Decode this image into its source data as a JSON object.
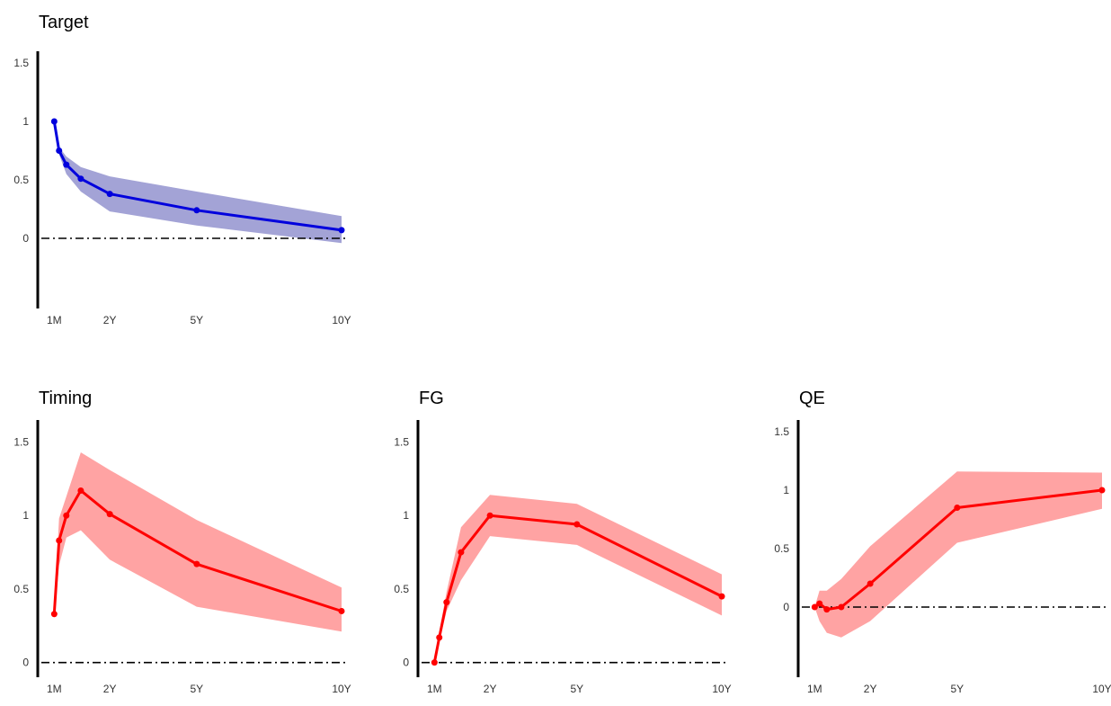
{
  "chart_data": [
    {
      "type": "line",
      "title": "Target",
      "x_tick_labels": [
        "1M",
        "2Y",
        "5Y",
        "10Y"
      ],
      "x_tick_values": [
        0.083,
        2,
        5,
        10
      ],
      "y_tick_labels": [
        "0",
        "0.5",
        "1",
        "1.5"
      ],
      "y_tick_values": [
        0,
        0.5,
        1,
        1.5
      ],
      "ylim": [
        -0.6,
        1.6
      ],
      "xlim": [
        -0.3,
        10
      ],
      "reference_line": {
        "y": 0,
        "style": "dash-dot"
      },
      "color": "#0000dd",
      "band_color": "#a3a3d6",
      "series": [
        {
          "x": [
            0.083,
            0.25,
            0.5,
            1,
            2,
            5,
            10
          ],
          "values": [
            1.0,
            0.75,
            0.63,
            0.51,
            0.38,
            0.24,
            0.07
          ],
          "lower": [
            1.0,
            0.72,
            0.55,
            0.4,
            0.23,
            0.11,
            -0.04
          ],
          "upper": [
            1.0,
            0.78,
            0.7,
            0.61,
            0.53,
            0.4,
            0.19
          ]
        }
      ]
    },
    {
      "type": "line",
      "title": "Timing",
      "x_tick_labels": [
        "1M",
        "2Y",
        "5Y",
        "10Y"
      ],
      "x_tick_values": [
        0.083,
        2,
        5,
        10
      ],
      "y_tick_labels": [
        "0",
        "0.5",
        "1",
        "1.5"
      ],
      "y_tick_values": [
        0,
        0.5,
        1,
        1.5
      ],
      "ylim": [
        -0.1,
        1.65
      ],
      "xlim": [
        -0.3,
        10
      ],
      "reference_line": {
        "y": 0,
        "style": "dash-dot"
      },
      "color": "#ff0000",
      "band_color": "#ffa3a3",
      "series": [
        {
          "x": [
            0.083,
            0.25,
            0.5,
            1,
            2,
            5,
            10
          ],
          "values": [
            0.33,
            0.83,
            1.0,
            1.17,
            1.01,
            0.67,
            0.35
          ],
          "lower": [
            0.3,
            0.66,
            0.85,
            0.9,
            0.7,
            0.38,
            0.21
          ],
          "upper": [
            0.36,
            0.98,
            1.13,
            1.43,
            1.31,
            0.97,
            0.51
          ]
        }
      ]
    },
    {
      "type": "line",
      "title": "FG",
      "x_tick_labels": [
        "1M",
        "2Y",
        "5Y",
        "10Y"
      ],
      "x_tick_values": [
        0.083,
        2,
        5,
        10
      ],
      "y_tick_labels": [
        "0",
        "0.5",
        "1",
        "1.5"
      ],
      "y_tick_values": [
        0,
        0.5,
        1,
        1.5
      ],
      "ylim": [
        -0.1,
        1.65
      ],
      "xlim": [
        -0.3,
        10
      ],
      "reference_line": {
        "y": 0,
        "style": "dash-dot"
      },
      "color": "#ff0000",
      "band_color": "#ffa3a3",
      "series": [
        {
          "x": [
            0.083,
            0.25,
            0.5,
            1,
            2,
            5,
            10
          ],
          "values": [
            0.0,
            0.17,
            0.41,
            0.75,
            1.0,
            0.94,
            0.45
          ],
          "lower": [
            0.0,
            0.14,
            0.35,
            0.56,
            0.86,
            0.8,
            0.32
          ],
          "upper": [
            0.0,
            0.21,
            0.48,
            0.92,
            1.14,
            1.08,
            0.6
          ]
        }
      ]
    },
    {
      "type": "line",
      "title": "QE",
      "x_tick_labels": [
        "1M",
        "2Y",
        "5Y",
        "10Y"
      ],
      "x_tick_values": [
        0.083,
        2,
        5,
        10
      ],
      "y_tick_labels": [
        "0",
        "0.5",
        "1",
        "1.5"
      ],
      "y_tick_values": [
        0,
        0.5,
        1,
        1.5
      ],
      "ylim": [
        -0.6,
        1.6
      ],
      "xlim": [
        -0.3,
        10
      ],
      "reference_line": {
        "y": 0,
        "style": "dash-dot"
      },
      "color": "#ff0000",
      "band_color": "#ffa3a3",
      "series": [
        {
          "x": [
            0.083,
            0.25,
            0.5,
            1,
            2,
            5,
            10
          ],
          "values": [
            0.0,
            0.03,
            -0.02,
            0.0,
            0.2,
            0.85,
            1.0
          ],
          "lower": [
            0.0,
            -0.12,
            -0.22,
            -0.26,
            -0.12,
            0.55,
            0.84
          ],
          "upper": [
            0.0,
            0.14,
            0.14,
            0.24,
            0.52,
            1.16,
            1.15
          ]
        }
      ]
    }
  ]
}
